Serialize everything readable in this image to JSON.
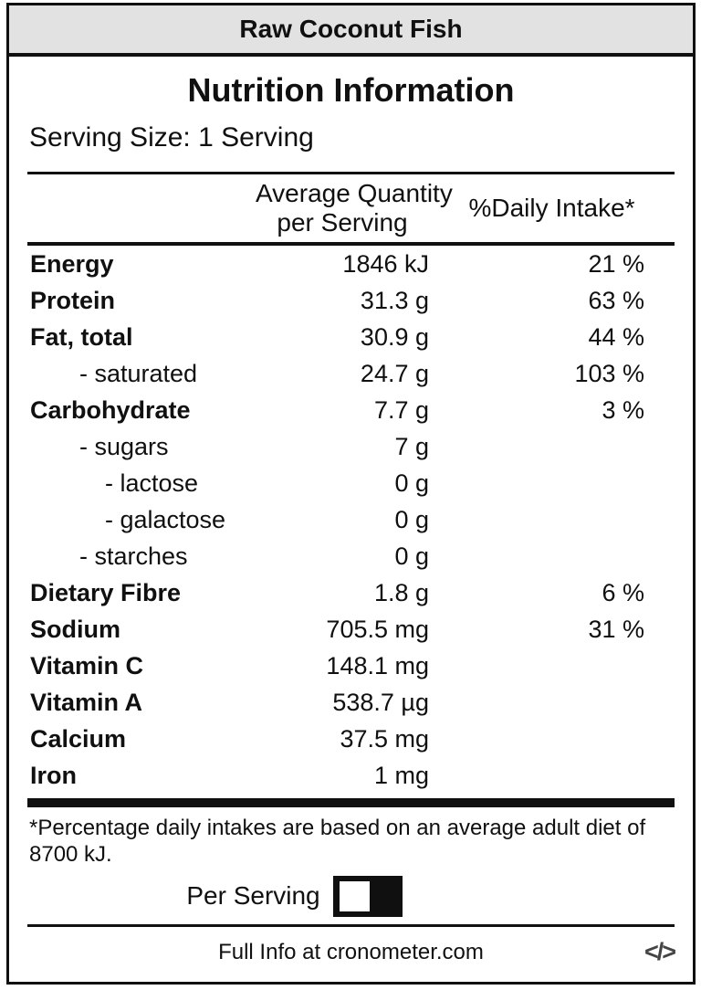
{
  "titlebar": {
    "title": "Raw Coconut Fish"
  },
  "label": {
    "title": "Nutrition Information",
    "serving_size": "Serving Size: 1 Serving",
    "header": {
      "quantity_line1": "Average Quantity",
      "quantity_line2": "per Serving",
      "daily_intake": "%Daily Intake*"
    },
    "rows": [
      {
        "name": "Energy",
        "qty": "1846 kJ",
        "pct": "21 %"
      },
      {
        "name": "Protein",
        "qty": "31.3 g",
        "pct": "63 %"
      },
      {
        "name": "Fat, total",
        "qty": "30.9 g",
        "pct": "44 %"
      },
      {
        "name": "- saturated",
        "qty": "24.7 g",
        "pct": "103 %"
      },
      {
        "name": "Carbohydrate",
        "qty": "7.7 g",
        "pct": "3 %"
      },
      {
        "name": "- sugars",
        "qty": "7 g",
        "pct": ""
      },
      {
        "name": "- lactose",
        "qty": "0 g",
        "pct": ""
      },
      {
        "name": "- galactose",
        "qty": "0 g",
        "pct": ""
      },
      {
        "name": "- starches",
        "qty": "0 g",
        "pct": ""
      },
      {
        "name": "Dietary Fibre",
        "qty": "1.8 g",
        "pct": "6 %"
      },
      {
        "name": "Sodium",
        "qty": "705.5 mg",
        "pct": "31 %"
      },
      {
        "name": "Vitamin C",
        "qty": "148.1 mg",
        "pct": ""
      },
      {
        "name": "Vitamin A",
        "qty": "538.7 µg",
        "pct": ""
      },
      {
        "name": "Calcium",
        "qty": "37.5 mg",
        "pct": ""
      },
      {
        "name": "Iron",
        "qty": "1 mg",
        "pct": ""
      }
    ],
    "footnote": "*Percentage daily intakes are based on an average adult diet of 8700 kJ.",
    "toggle": {
      "label": "Per Serving",
      "knob_position": "left"
    },
    "footer": {
      "text": "Full Info at cronometer.com",
      "code_icon": "</>"
    },
    "colors": {
      "titlebar_bg": "#e2e2e2",
      "border": "#101010",
      "icon_gray": "#444444"
    }
  }
}
